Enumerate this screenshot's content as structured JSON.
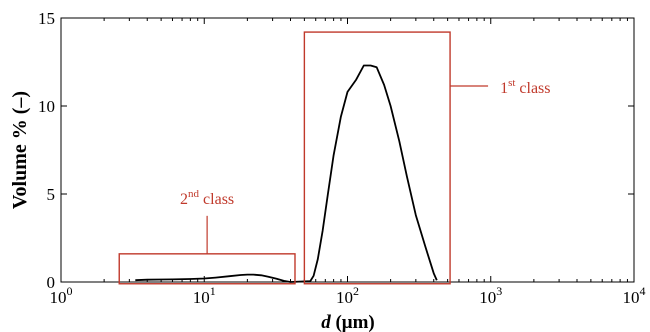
{
  "chart_data": {
    "type": "line",
    "xscale": "log",
    "xlim": [
      1,
      10000
    ],
    "ylim": [
      0,
      15
    ],
    "xlabel": {
      "italic": "d",
      "rest": " (μm)"
    },
    "ylabel": "Volume % (–)",
    "x_ticks": [
      {
        "value": 1,
        "base": "10",
        "exp": "0"
      },
      {
        "value": 10,
        "base": "10",
        "exp": "1"
      },
      {
        "value": 100,
        "base": "10",
        "exp": "2"
      },
      {
        "value": 1000,
        "base": "10",
        "exp": "3"
      },
      {
        "value": 10000,
        "base": "10",
        "exp": "4"
      }
    ],
    "y_ticks": [
      {
        "value": 0,
        "label": "0"
      },
      {
        "value": 5,
        "label": "5"
      },
      {
        "value": 10,
        "label": "10"
      },
      {
        "value": 15,
        "label": "15"
      }
    ],
    "series": [
      {
        "color": "#000000",
        "x": [
          3.3,
          4,
          5,
          6,
          8,
          10,
          12,
          15,
          18,
          20,
          22,
          25,
          28,
          32,
          36,
          40,
          55,
          58,
          62,
          67,
          73,
          80,
          90,
          100,
          115,
          130,
          145,
          160,
          180,
          200,
          230,
          260,
          300,
          350,
          400,
          420
        ],
        "y": [
          0.1,
          0.13,
          0.14,
          0.15,
          0.17,
          0.2,
          0.25,
          0.33,
          0.4,
          0.42,
          0.42,
          0.38,
          0.3,
          0.18,
          0.06,
          0.0,
          0.05,
          0.35,
          1.3,
          2.9,
          5.0,
          7.2,
          9.4,
          10.8,
          11.5,
          12.3,
          12.3,
          12.2,
          11.2,
          10.0,
          8.0,
          6.0,
          3.8,
          2.0,
          0.5,
          0.1
        ]
      }
    ],
    "annotations": [
      {
        "id": "first-class",
        "color": "#c0392b",
        "box": {
          "x0": 50,
          "x1": 520,
          "y0": -0.1,
          "y1": 14.2
        },
        "label": {
          "base": "1",
          "sup": "st",
          "rest": " class"
        }
      },
      {
        "id": "second-class",
        "color": "#c0392b",
        "box": {
          "x0": 2.55,
          "x1": 43,
          "y0": -0.1,
          "y1": 1.6
        },
        "label": {
          "base": "2",
          "sup": "nd",
          "rest": " class"
        }
      }
    ]
  }
}
